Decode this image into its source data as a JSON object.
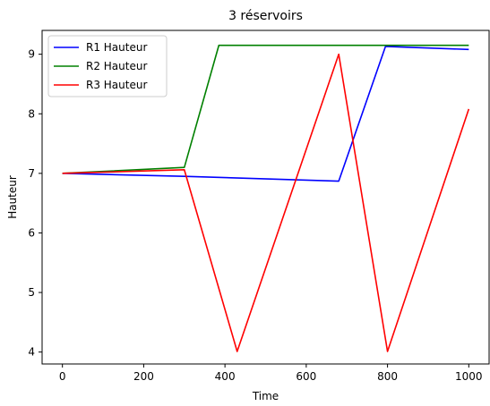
{
  "chart_data": {
    "type": "line",
    "title": "3 réservoirs",
    "xlabel": "Time",
    "ylabel": "Hauteur",
    "xlim": [
      -50,
      1050
    ],
    "ylim": [
      3.8,
      9.4
    ],
    "xticks": [
      0,
      200,
      400,
      600,
      800,
      1000
    ],
    "yticks": [
      4,
      5,
      6,
      7,
      8,
      9
    ],
    "legend": "top-left",
    "grid": false,
    "series": [
      {
        "name": "R1 Hauteur",
        "color": "#0000ff",
        "x": [
          0,
          300,
          680,
          795,
          1000
        ],
        "y": [
          7.0,
          6.95,
          6.87,
          9.13,
          9.08
        ]
      },
      {
        "name": "R2 Hauteur",
        "color": "#008000",
        "x": [
          0,
          300,
          385,
          1000
        ],
        "y": [
          7.0,
          7.1,
          9.15,
          9.15
        ]
      },
      {
        "name": "R3 Hauteur",
        "color": "#ff0000",
        "x": [
          0,
          300,
          430,
          680,
          800,
          1000
        ],
        "y": [
          7.0,
          7.06,
          4.01,
          9.0,
          4.01,
          8.08
        ]
      }
    ]
  }
}
